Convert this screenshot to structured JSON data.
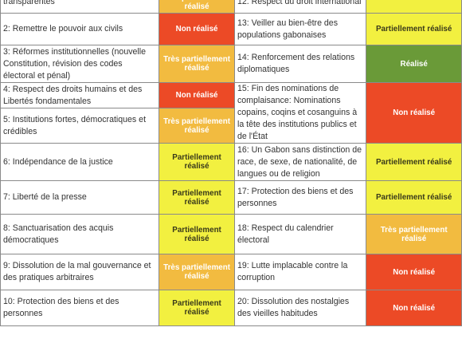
{
  "colors": {
    "non_realise": "#ec4a26",
    "tres_partiellement_realise": "#f2bb40",
    "partiellement_realise": "#f2f040",
    "realise": "#6a9a38"
  },
  "rows": [
    {
      "left": "transparentes",
      "left_status": "Très partiellement réalisé",
      "left_status_code": "tpr",
      "right": "12. Respect du droit international",
      "right_status": "",
      "right_status_code": "pr",
      "h": 28
    },
    {
      "left": "2: Remettre le pouvoir aux civils",
      "left_status": "Non réalisé",
      "left_status_code": "nr",
      "right": "13: Veiller au bien-être des populations gabonaises",
      "right_status": "Partiellement réalisé",
      "right_status_code": "pr",
      "h": 40
    },
    {
      "left": "3: Réformes institutionnelles (nouvelle Constitution, révision des codes électoral et pénal)",
      "left_status": "Très partiellement réalisé",
      "left_status_code": "tpr",
      "right": "14: Renforcement des relations diplomatiques",
      "right_status": "Réalisé",
      "right_status_code": "r",
      "h": 47
    },
    {
      "left": "4: Respect des droits humains et des Libertés fondamentales",
      "left_status": "Non réalisé",
      "left_status_code": "nr",
      "right": "15: Fin des nominations de complaisance: Nominations copains, coqins et cosanguins à la tête des institutions publics et de l'État",
      "right_status": "Non réalisé",
      "right_status_code": "nr",
      "h": 32,
      "right_rowspan": 2
    },
    {
      "left": "5: Institutions fortes, démocratiques et crédibles",
      "left_status": "Très partiellement réalisé",
      "left_status_code": "tpr",
      "h": 44
    },
    {
      "left": "6: Indépendance de la justice",
      "left_status": "Partiellement réalisé",
      "left_status_code": "pr",
      "right": "16: Un Gabon sans distinction de race, de sexe, de nationalité, de langues ou de religion",
      "right_status": "Partiellement réalisé",
      "right_status_code": "pr",
      "h": 47
    },
    {
      "left": "7: Liberté de la presse",
      "left_status": "Partiellement réalisé",
      "left_status_code": "pr",
      "right": "17: Protection des biens et des personnes",
      "right_status": "Partiellement réalisé",
      "right_status_code": "pr",
      "h": 42
    },
    {
      "left": "8: Sanctuarisation des acquis démocratiques",
      "left_status": "Partiellement réalisé",
      "left_status_code": "pr",
      "right": "18: Respect du calendrier électoral",
      "right_status": "Très partiellement réalisé",
      "right_status_code": "tpr",
      "h": 50
    },
    {
      "left": "9: Dissolution de la mal gouvernance et des pratiques arbitraires",
      "left_status": "Très partiellement réalisé",
      "left_status_code": "tpr",
      "right": "19: Lutte implacable contre la corruption",
      "right_status": "Non réalisé",
      "right_status_code": "nr",
      "h": 45
    },
    {
      "left": "10: Protection des biens et des personnes",
      "left_status": "Partiellement réalisé",
      "left_status_code": "pr",
      "right": "20: Dissolution des nostalgies des vieilles habitudes",
      "right_status": "Non réalisé",
      "right_status_code": "nr",
      "h": 45
    }
  ]
}
